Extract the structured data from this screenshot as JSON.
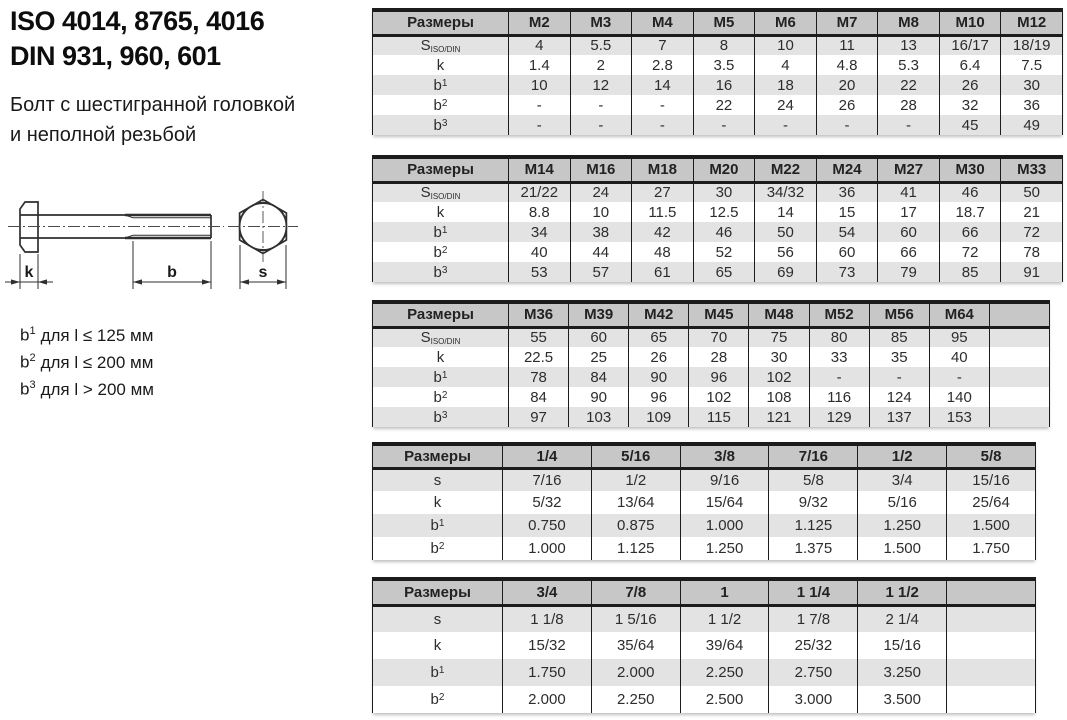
{
  "page": {
    "title_line1": "ISO 4014, 8765, 4016",
    "title_line2": "DIN 931, 960, 601",
    "subtitle_line1": "Болт с шестигранной головкой",
    "subtitle_line2": "и неполной резьбой"
  },
  "drawing": {
    "labels": {
      "head_height": "k",
      "thread_length": "b",
      "width_across_flats": "s"
    }
  },
  "notes": [
    {
      "base": "b",
      "sup": "1",
      "text": "для l ≤ 125 мм"
    },
    {
      "base": "b",
      "sup": "2",
      "text": "для l ≤ 200 мм"
    },
    {
      "base": "b",
      "sup": "3",
      "text": "для l > 200 мм"
    }
  ],
  "colors": {
    "header_bg": "#c7c7c7",
    "row_shade": "#e3e3e3",
    "border": "#1c1c1c",
    "text": "#333333"
  },
  "tables": [
    {
      "label_header": "Размеры",
      "columns": [
        "M2",
        "M3",
        "M4",
        "M5",
        "M6",
        "M7",
        "M8",
        "M10",
        "M12"
      ],
      "rows": [
        {
          "label": {
            "base": "S",
            "sub": "ISO/DIN"
          },
          "values": [
            "4",
            "5.5",
            "7",
            "8",
            "10",
            "11",
            "13",
            "16/17",
            "18/19"
          ]
        },
        {
          "label": {
            "base": "k"
          },
          "values": [
            "1.4",
            "2",
            "2.8",
            "3.5",
            "4",
            "4.8",
            "5.3",
            "6.4",
            "7.5"
          ]
        },
        {
          "label": {
            "base": "b",
            "sup": "1"
          },
          "values": [
            "10",
            "12",
            "14",
            "16",
            "18",
            "20",
            "22",
            "26",
            "30"
          ]
        },
        {
          "label": {
            "base": "b",
            "sup": "2"
          },
          "values": [
            "-",
            "-",
            "-",
            "22",
            "24",
            "26",
            "28",
            "32",
            "36"
          ]
        },
        {
          "label": {
            "base": "b",
            "sup": "3"
          },
          "values": [
            "-",
            "-",
            "-",
            "-",
            "-",
            "-",
            "-",
            "45",
            "49"
          ]
        }
      ]
    },
    {
      "label_header": "Размеры",
      "columns": [
        "M14",
        "M16",
        "M18",
        "M20",
        "M22",
        "M24",
        "M27",
        "M30",
        "M33"
      ],
      "rows": [
        {
          "label": {
            "base": "S",
            "sub": "ISO/DIN"
          },
          "values": [
            "21/22",
            "24",
            "27",
            "30",
            "34/32",
            "36",
            "41",
            "46",
            "50"
          ]
        },
        {
          "label": {
            "base": "k"
          },
          "values": [
            "8.8",
            "10",
            "11.5",
            "12.5",
            "14",
            "15",
            "17",
            "18.7",
            "21"
          ]
        },
        {
          "label": {
            "base": "b",
            "sup": "1"
          },
          "values": [
            "34",
            "38",
            "42",
            "46",
            "50",
            "54",
            "60",
            "66",
            "72"
          ]
        },
        {
          "label": {
            "base": "b",
            "sup": "2"
          },
          "values": [
            "40",
            "44",
            "48",
            "52",
            "56",
            "60",
            "66",
            "72",
            "78"
          ]
        },
        {
          "label": {
            "base": "b",
            "sup": "3"
          },
          "values": [
            "53",
            "57",
            "61",
            "65",
            "69",
            "73",
            "79",
            "85",
            "91"
          ]
        }
      ]
    },
    {
      "label_header": "Размеры",
      "columns": [
        "M36",
        "M39",
        "M42",
        "M45",
        "M48",
        "M52",
        "M56",
        "M64",
        ""
      ],
      "rows": [
        {
          "label": {
            "base": "S",
            "sub": "ISO/DIN"
          },
          "values": [
            "55",
            "60",
            "65",
            "70",
            "75",
            "80",
            "85",
            "95",
            ""
          ]
        },
        {
          "label": {
            "base": "k"
          },
          "values": [
            "22.5",
            "25",
            "26",
            "28",
            "30",
            "33",
            "35",
            "40",
            ""
          ]
        },
        {
          "label": {
            "base": "b",
            "sup": "1"
          },
          "values": [
            "78",
            "84",
            "90",
            "96",
            "102",
            "-",
            "-",
            "-",
            ""
          ]
        },
        {
          "label": {
            "base": "b",
            "sup": "2"
          },
          "values": [
            "84",
            "90",
            "96",
            "102",
            "108",
            "116",
            "124",
            "140",
            ""
          ]
        },
        {
          "label": {
            "base": "b",
            "sup": "3"
          },
          "values": [
            "97",
            "103",
            "109",
            "115",
            "121",
            "129",
            "137",
            "153",
            ""
          ]
        }
      ]
    },
    {
      "label_header": "Размеры",
      "columns": [
        "1/4",
        "5/16",
        "3/8",
        "7/16",
        "1/2",
        "5/8"
      ],
      "rows": [
        {
          "label": {
            "base": "s"
          },
          "values": [
            "7/16",
            "1/2",
            "9/16",
            "5/8",
            "3/4",
            "15/16"
          ]
        },
        {
          "label": {
            "base": "k"
          },
          "values": [
            "5/32",
            "13/64",
            "15/64",
            "9/32",
            "5/16",
            "25/64"
          ]
        },
        {
          "label": {
            "base": "b",
            "sup": "1"
          },
          "values": [
            "0.750",
            "0.875",
            "1.000",
            "1.125",
            "1.250",
            "1.500"
          ]
        },
        {
          "label": {
            "base": "b",
            "sup": "2"
          },
          "values": [
            "1.000",
            "1.125",
            "1.250",
            "1.375",
            "1.500",
            "1.750"
          ]
        }
      ]
    },
    {
      "label_header": "Размеры",
      "columns": [
        "3/4",
        "7/8",
        "1",
        "1 1/4",
        "1 1/2",
        ""
      ],
      "rows": [
        {
          "label": {
            "base": "s"
          },
          "values": [
            "1 1/8",
            "1 5/16",
            "1 1/2",
            "1 7/8",
            "2 1/4",
            ""
          ]
        },
        {
          "label": {
            "base": "k"
          },
          "values": [
            "15/32",
            "35/64",
            "39/64",
            "25/32",
            "15/16",
            ""
          ]
        },
        {
          "label": {
            "base": "b",
            "sup": "1"
          },
          "values": [
            "1.750",
            "2.000",
            "2.250",
            "2.750",
            "3.250",
            ""
          ]
        },
        {
          "label": {
            "base": "b",
            "sup": "2"
          },
          "values": [
            "2.000",
            "2.250",
            "2.500",
            "3.000",
            "3.500",
            ""
          ]
        }
      ]
    }
  ]
}
